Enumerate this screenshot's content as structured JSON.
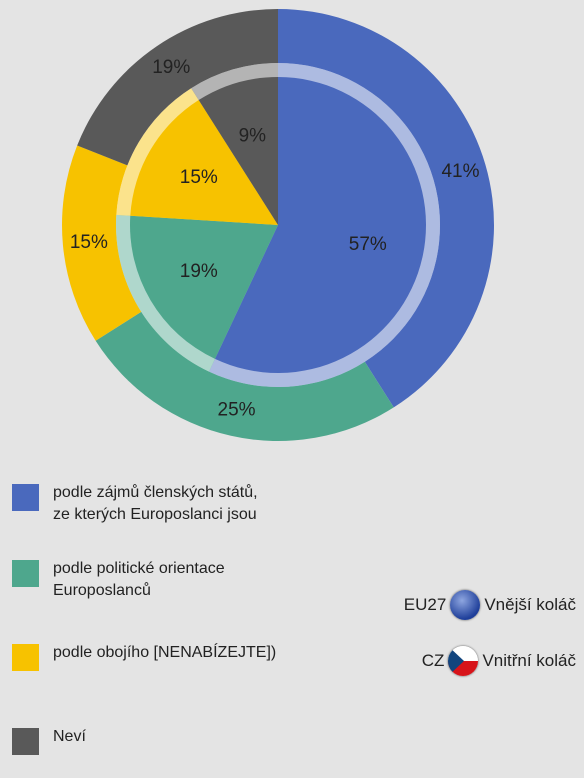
{
  "chart_data": {
    "type": "donut",
    "categories": [
      "podle zájmů členských států,\nze kterých Europoslanci jsou",
      "podle politické orientace\nEuroposlanců",
      "podle obojího [NENABÍZEJTE])",
      "Neví"
    ],
    "colors": [
      "#4a69bd",
      "#4ea78d",
      "#f7c200",
      "#595959"
    ],
    "series": [
      {
        "name": "EU27",
        "label": "Vnější koláč",
        "values": [
          41,
          25,
          15,
          19
        ],
        "value_labels": [
          "41%",
          "25%",
          "15%",
          "19%"
        ]
      },
      {
        "name": "CZ",
        "label": "Vnitřní koláč",
        "values": [
          57,
          19,
          15,
          9
        ],
        "value_labels": [
          "57%",
          "19%",
          "15%",
          "9%"
        ]
      }
    ]
  }
}
